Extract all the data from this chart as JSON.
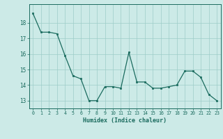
{
  "x": [
    0,
    1,
    2,
    3,
    4,
    5,
    6,
    7,
    8,
    9,
    10,
    11,
    12,
    13,
    14,
    15,
    16,
    17,
    18,
    19,
    20,
    21,
    22,
    23
  ],
  "y": [
    18.6,
    17.4,
    17.4,
    17.3,
    15.9,
    14.6,
    14.4,
    13.0,
    13.0,
    13.9,
    13.9,
    13.8,
    16.1,
    14.2,
    14.2,
    13.8,
    13.8,
    13.9,
    14.0,
    14.9,
    14.9,
    14.5,
    13.4,
    13.0
  ],
  "line_color": "#1a6b5e",
  "marker_color": "#1a6b5e",
  "bg_color": "#cceae7",
  "grid_color": "#9eccc8",
  "axis_color": "#1a6b5e",
  "xlabel": "Humidex (Indice chaleur)",
  "ylim": [
    12.5,
    19.2
  ],
  "yticks": [
    13,
    14,
    15,
    16,
    17,
    18
  ],
  "xlim": [
    -0.5,
    23.5
  ],
  "xticks": [
    0,
    1,
    2,
    3,
    4,
    5,
    6,
    7,
    8,
    9,
    10,
    11,
    12,
    13,
    14,
    15,
    16,
    17,
    18,
    19,
    20,
    21,
    22,
    23
  ]
}
